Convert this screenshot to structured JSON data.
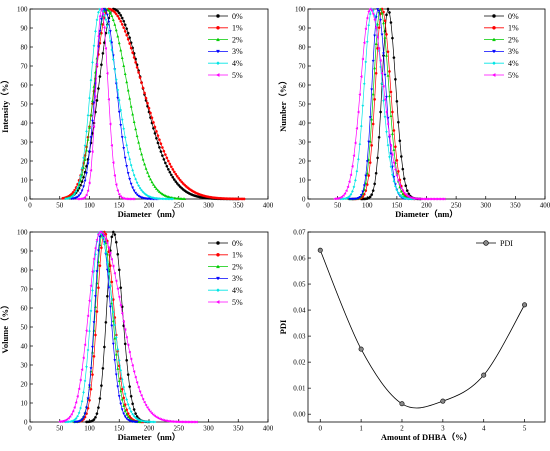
{
  "chart_data": [
    {
      "type": "line",
      "panel": "top-left",
      "xlabel": "Diameter（nm）",
      "ylabel": "Intensity（%）",
      "xlim": [
        0,
        400
      ],
      "ylim": [
        0,
        100
      ],
      "xticks": [
        0,
        50,
        100,
        150,
        200,
        250,
        300,
        350,
        400
      ],
      "yticks": [
        0,
        10,
        20,
        30,
        40,
        50,
        60,
        70,
        80,
        90,
        100
      ],
      "legend_position": "top-right",
      "series": [
        {
          "name": "0%",
          "color": "#000000",
          "marker": "circle",
          "peak": 140,
          "sigma_left": 24,
          "sigma_right": 48,
          "start": 60,
          "end": 350
        },
        {
          "name": "1%",
          "color": "#ff0000",
          "marker": "circle",
          "peak": 132,
          "sigma_left": 23,
          "sigma_right": 56,
          "start": 55,
          "end": 360
        },
        {
          "name": "2%",
          "color": "#00cc00",
          "marker": "triangle-up",
          "peak": 128,
          "sigma_left": 20,
          "sigma_right": 35,
          "start": 60,
          "end": 260
        },
        {
          "name": "3%",
          "color": "#0000ff",
          "marker": "triangle-down",
          "peak": 125,
          "sigma_left": 15,
          "sigma_right": 20,
          "start": 70,
          "end": 215
        },
        {
          "name": "4%",
          "color": "#00e5e5",
          "marker": "diamond",
          "peak": 118,
          "sigma_left": 16,
          "sigma_right": 28,
          "start": 60,
          "end": 240
        },
        {
          "name": "5%",
          "color": "#ff00ff",
          "marker": "triangle-left",
          "peak": 120,
          "sigma_left": 9,
          "sigma_right": 11,
          "start": 80,
          "end": 175
        }
      ]
    },
    {
      "type": "line",
      "panel": "top-right",
      "xlabel": "Diameter（nm）",
      "ylabel": "Number（%）",
      "xlim": [
        0,
        400
      ],
      "ylim": [
        0,
        100
      ],
      "xticks": [
        0,
        50,
        100,
        150,
        200,
        250,
        300,
        350,
        400
      ],
      "yticks": [
        0,
        10,
        20,
        30,
        40,
        50,
        60,
        70,
        80,
        90,
        100
      ],
      "legend_position": "top-right",
      "series": [
        {
          "name": "0%",
          "color": "#000000",
          "marker": "circle",
          "peak": 135,
          "sigma_left": 10,
          "sigma_right": 13,
          "start": 90,
          "end": 190
        },
        {
          "name": "1%",
          "color": "#ff0000",
          "marker": "circle",
          "peak": 125,
          "sigma_left": 11,
          "sigma_right": 14,
          "start": 75,
          "end": 180
        },
        {
          "name": "2%",
          "color": "#00cc00",
          "marker": "triangle-up",
          "peak": 122,
          "sigma_left": 11,
          "sigma_right": 14,
          "start": 70,
          "end": 175
        },
        {
          "name": "3%",
          "color": "#0000ff",
          "marker": "triangle-down",
          "peak": 118,
          "sigma_left": 10,
          "sigma_right": 13,
          "start": 70,
          "end": 170
        },
        {
          "name": "4%",
          "color": "#00e5e5",
          "marker": "diamond",
          "peak": 108,
          "sigma_left": 13,
          "sigma_right": 17,
          "start": 55,
          "end": 180
        },
        {
          "name": "5%",
          "color": "#ff00ff",
          "marker": "triangle-left",
          "peak": 105,
          "sigma_left": 16,
          "sigma_right": 22,
          "start": 45,
          "end": 230
        }
      ]
    },
    {
      "type": "line",
      "panel": "bottom-left",
      "xlabel": "Diameter（nm）",
      "ylabel": "Volume（%）",
      "xlim": [
        0,
        400
      ],
      "ylim": [
        0,
        100
      ],
      "xticks": [
        0,
        50,
        100,
        150,
        200,
        250,
        300,
        350,
        400
      ],
      "yticks": [
        0,
        10,
        20,
        30,
        40,
        50,
        60,
        70,
        80,
        90,
        100
      ],
      "legend_position": "top-right",
      "series": [
        {
          "name": "0%",
          "color": "#000000",
          "marker": "circle",
          "peak": 140,
          "sigma_left": 11,
          "sigma_right": 15,
          "start": 95,
          "end": 200
        },
        {
          "name": "1%",
          "color": "#ff0000",
          "marker": "circle",
          "peak": 125,
          "sigma_left": 12,
          "sigma_right": 16,
          "start": 80,
          "end": 190
        },
        {
          "name": "2%",
          "color": "#00cc00",
          "marker": "triangle-up",
          "peak": 122,
          "sigma_left": 12,
          "sigma_right": 16,
          "start": 75,
          "end": 185
        },
        {
          "name": "3%",
          "color": "#0000ff",
          "marker": "triangle-down",
          "peak": 120,
          "sigma_left": 11,
          "sigma_right": 15,
          "start": 75,
          "end": 180
        },
        {
          "name": "4%",
          "color": "#00e5e5",
          "marker": "diamond",
          "peak": 117,
          "sigma_left": 14,
          "sigma_right": 22,
          "start": 60,
          "end": 210
        },
        {
          "name": "5%",
          "color": "#ff00ff",
          "marker": "triangle-left",
          "peak": 118,
          "sigma_left": 19,
          "sigma_right": 35,
          "start": 50,
          "end": 280
        }
      ]
    },
    {
      "type": "line",
      "panel": "bottom-right",
      "xlabel": "Amount of DHBA（%）",
      "ylabel": "PDI",
      "xlim": [
        -0.3,
        5.5
      ],
      "ylim": [
        -0.003,
        0.07
      ],
      "xticks": [
        0,
        1,
        2,
        3,
        4,
        5
      ],
      "yticks": [
        0.0,
        0.01,
        0.02,
        0.03,
        0.04,
        0.05,
        0.06,
        0.07
      ],
      "ytick_labels": [
        "0.00",
        "0.01",
        "0.02",
        "0.03",
        "0.04",
        "0.05",
        "0.06",
        "0.07"
      ],
      "legend_position": "top-right",
      "series": [
        {
          "name": "PDI",
          "color": "#000000",
          "marker": "circle",
          "x": [
            0,
            1,
            2,
            3,
            4,
            5
          ],
          "values": [
            0.063,
            0.025,
            0.004,
            0.005,
            0.015,
            0.042
          ]
        }
      ]
    }
  ]
}
